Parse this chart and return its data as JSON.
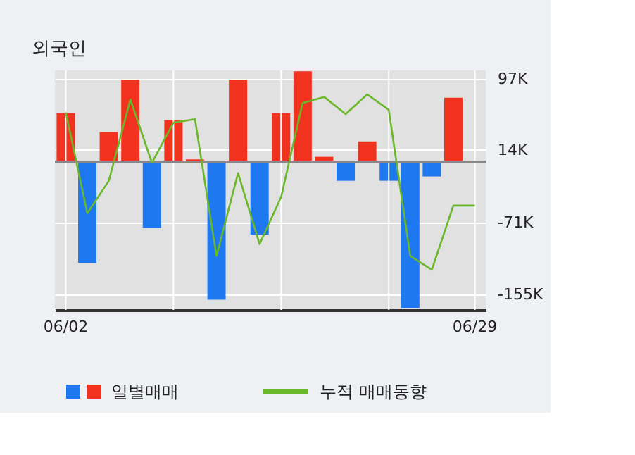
{
  "chart_data": {
    "type": "bar",
    "title": "외국인",
    "categories": [
      "06/02",
      null,
      null,
      null,
      null,
      null,
      null,
      null,
      null,
      null,
      null,
      null,
      null,
      null,
      null,
      null,
      null,
      null,
      null,
      "06/29"
    ],
    "series": [
      {
        "name": "일별매매",
        "colors": [
          "#f0321e",
          "#1e78f0",
          "#f0321e",
          "#f0321e",
          "#1e78f0",
          "#f0321e",
          "#f0321e",
          "#1e78f0",
          "#f0321e",
          "#1e78f0",
          "#f0321e",
          "#f0321e",
          "#f0321e",
          "#1e78f0",
          "#f0321e",
          "#1e78f0",
          "#1e78f0",
          "#1e78f0",
          "#f0321e",
          "#f0321e"
        ],
        "values": [
          57,
          -118,
          35,
          96,
          -77,
          49,
          3,
          -161,
          96,
          -85,
          57,
          106,
          6,
          -22,
          24,
          -22,
          -171,
          -17,
          75,
          null
        ]
      },
      {
        "name": "누적 매매동향",
        "type": "line",
        "color": "#6ab82a",
        "values": [
          58,
          -60,
          -22,
          73,
          -1,
          46,
          50,
          -110,
          -13,
          -96,
          -41,
          69,
          76,
          56,
          79,
          61,
          -110,
          -126,
          -51,
          -51
        ]
      }
    ],
    "ylim": [
      -173,
      107
    ],
    "yticks": [
      {
        "value": 97,
        "label": "97K"
      },
      {
        "value": 14,
        "label": "14K"
      },
      {
        "value": -71,
        "label": "-71K"
      },
      {
        "value": -155,
        "label": "-155K"
      }
    ],
    "ref_lines": [
      {
        "axis": "y",
        "value": 0,
        "color": "#888888"
      }
    ],
    "grid": true,
    "legend": "bottom"
  }
}
